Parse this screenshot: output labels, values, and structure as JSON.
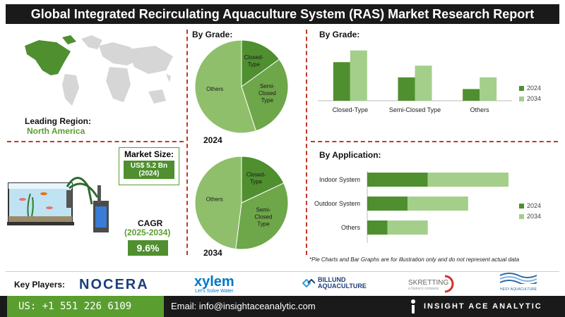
{
  "title": "Global Integrated Recirculating Aquaculture System (RAS) Market Research Report",
  "leading_region": {
    "label": "Leading Region:",
    "value": "North America"
  },
  "market_size": {
    "label": "Market Size:",
    "value": "US$ 5.2 Bn",
    "year": "(2024)"
  },
  "cagr": {
    "label": "CAGR",
    "period": "(2025-2034)",
    "value": "9.6%"
  },
  "colors": {
    "dark_green": "#4f8f2f",
    "light_green": "#a3cf8a",
    "mid_green": "#6ea64a",
    "accent_red": "#c0392b"
  },
  "chart_data": [
    {
      "type": "pie",
      "title": "By Grade:",
      "year_label": "2024",
      "slices": [
        {
          "label": "Closed-Type",
          "value": 15,
          "color": "#4f8f2f"
        },
        {
          "label": "Semi-Closed Type",
          "value": 30,
          "color": "#6ea64a"
        },
        {
          "label": "Others",
          "value": 55,
          "color": "#8fbf6b"
        }
      ]
    },
    {
      "type": "pie",
      "year_label": "2034",
      "slices": [
        {
          "label": "Closed-Type",
          "value": 18,
          "color": "#4f8f2f"
        },
        {
          "label": "Semi-Closed Type",
          "value": 34,
          "color": "#6ea64a"
        },
        {
          "label": "Others",
          "value": 48,
          "color": "#8fbf6b"
        }
      ]
    },
    {
      "type": "bar",
      "title": "By Grade:",
      "categories": [
        "Closed-Type",
        "Semi-Closed Type",
        "Others"
      ],
      "series": [
        {
          "name": "2024",
          "values": [
            3.3,
            2.0,
            1.0
          ],
          "color": "#4f8f2f"
        },
        {
          "name": "2034",
          "values": [
            4.3,
            3.0,
            2.0
          ],
          "color": "#a3cf8a"
        }
      ],
      "ylim": [
        0,
        5
      ]
    },
    {
      "type": "bar",
      "orientation": "horizontal",
      "title": "By Application:",
      "categories": [
        "Indoor System",
        "Outdoor System",
        "Others"
      ],
      "series": [
        {
          "name": "2024",
          "values": [
            3.0,
            2.0,
            1.0
          ],
          "color": "#4f8f2f"
        },
        {
          "name": "2034",
          "values": [
            4.0,
            3.0,
            2.0
          ],
          "color": "#a3cf8a"
        }
      ],
      "xlim": [
        0,
        7
      ]
    }
  ],
  "disclaimer": "*Pie Charts and Bar Graphs are for illustration only and do not represent actual data",
  "key_players": {
    "label": "Key Players:",
    "logos": [
      {
        "name": "NOCERA",
        "sub": "",
        "color": "#1b3f7a"
      },
      {
        "name": "xylem",
        "sub": "Let's Solve Water",
        "color": "#0077c8"
      },
      {
        "name": "BILLUND AQUACULTURE",
        "sub": "",
        "color": "#1b3f7a"
      },
      {
        "name": "SKRETTING",
        "sub": "a Nutreco company",
        "color": "#666666"
      },
      {
        "name": "HESY AQUACULTURE",
        "sub": "",
        "color": "#2a6aa8"
      }
    ]
  },
  "footer": {
    "phone": "US: +1 551 226 6109",
    "email": "Email: info@insightaceanalytic.com",
    "brand": "INSIGHT ACE ANALYTIC"
  }
}
